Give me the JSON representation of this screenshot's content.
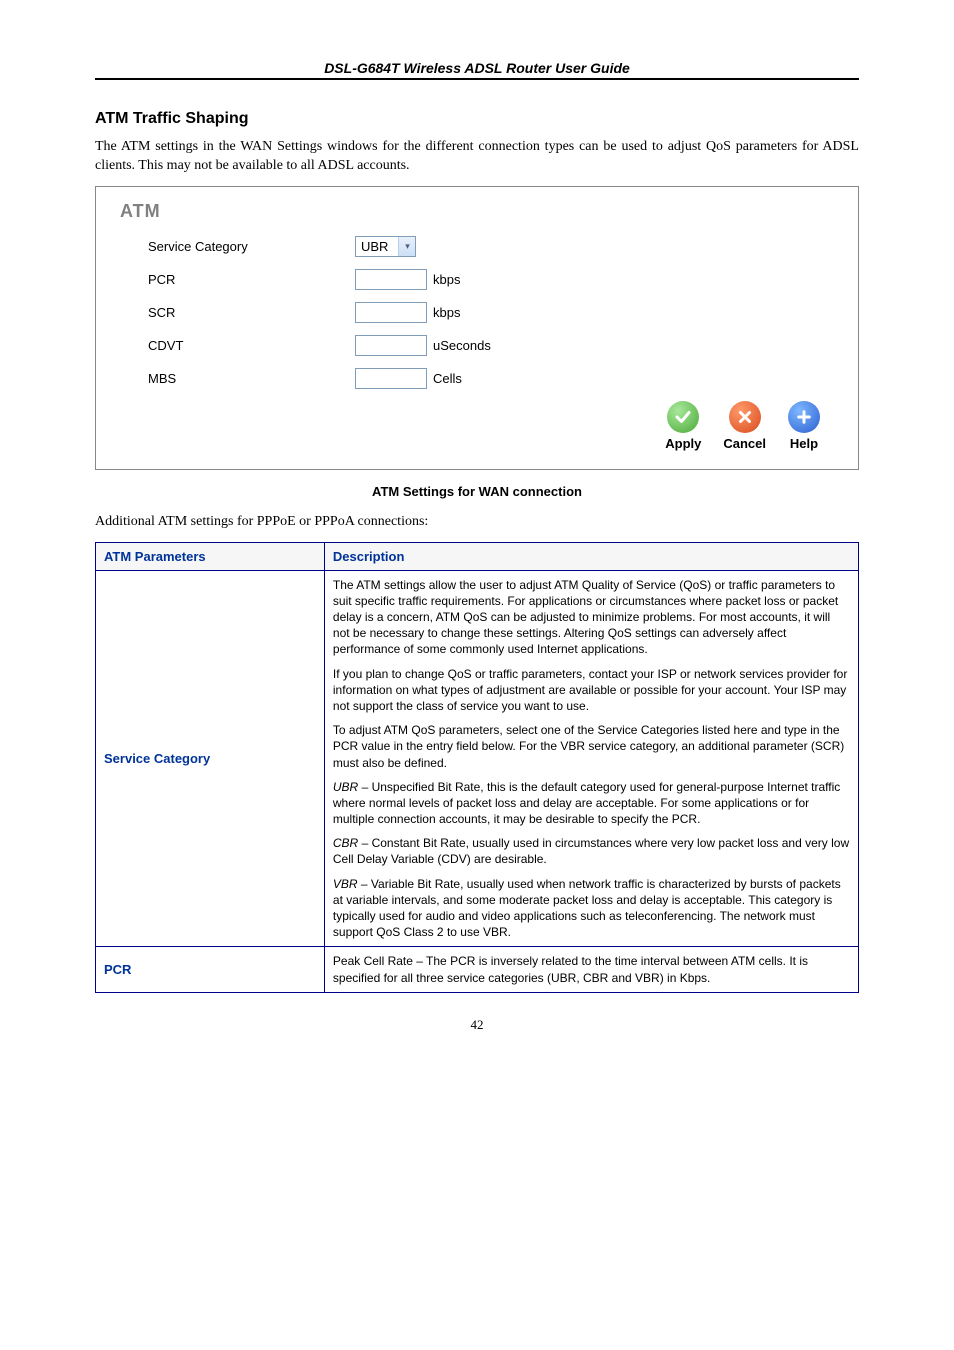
{
  "header": {
    "title": "DSL-G684T Wireless ADSL Router User Guide"
  },
  "section": {
    "heading": "ATM Traffic Shaping",
    "intro": "The ATM settings in the WAN Settings windows for the different connection types can be used to adjust QoS parameters for ADSL clients. This may not be available to all ADSL accounts."
  },
  "atm_panel": {
    "title": "ATM",
    "rows": [
      {
        "label": "Service Category",
        "type": "select",
        "value": "UBR"
      },
      {
        "label": "PCR",
        "type": "input",
        "unit": "kbps"
      },
      {
        "label": "SCR",
        "type": "input",
        "unit": "kbps"
      },
      {
        "label": "CDVT",
        "type": "input",
        "unit": "uSeconds"
      },
      {
        "label": "MBS",
        "type": "input",
        "unit": "Cells"
      }
    ],
    "buttons": {
      "apply": {
        "label": "Apply",
        "bg": "#4aa838"
      },
      "cancel": {
        "label": "Cancel",
        "bg": "#d84a1c"
      },
      "help": {
        "label": "Help",
        "bg": "#2a5fd0"
      }
    }
  },
  "figure_caption": "ATM Settings for WAN connection",
  "post_caption": "Additional ATM settings for PPPoE or PPPoA connections:",
  "table": {
    "columns": [
      "ATM Parameters",
      "Description"
    ],
    "col_widths": [
      "30%",
      "70%"
    ],
    "border_color": "#00008b",
    "header_color": "#003399",
    "rows": [
      {
        "label": "Service Category",
        "paras": [
          {
            "text": "The ATM settings allow the user to adjust ATM Quality of Service (QoS) or traffic parameters to suit specific traffic requirements. For applications or circumstances where packet loss or packet delay is a concern, ATM QoS can be adjusted to minimize problems. For most accounts, it will not be necessary to change these settings. Altering QoS settings can adversely affect performance of some commonly used Internet applications."
          },
          {
            "text": "If you plan to change QoS or traffic parameters, contact your ISP or network services provider for information on what types of adjustment are available or possible for your account. Your ISP may not support the class of service you want to use."
          },
          {
            "text": "To adjust ATM QoS parameters, select one of the Service Categories listed here and type in the PCR value in the entry field below. For the VBR service category, an additional parameter (SCR) must also be defined."
          },
          {
            "prefix_ital": "UBR",
            "rest": " – Unspecified Bit Rate, this is the default category used for general-purpose Internet traffic where normal levels of packet loss and delay are acceptable. For some applications or for multiple connection accounts, it may be desirable to specify the PCR."
          },
          {
            "prefix_ital": "CBR",
            "rest": " – Constant Bit Rate, usually used in circumstances where very low packet loss and very low Cell Delay Variable (CDV) are desirable."
          },
          {
            "prefix_ital": "VBR",
            "rest": " – Variable Bit Rate, usually used when network traffic is characterized by bursts of packets at variable intervals, and some moderate packet loss and delay is acceptable. This category is typically used for audio and video applications such as teleconferencing. The network must support QoS Class 2 to use VBR."
          }
        ]
      },
      {
        "label": "PCR",
        "paras": [
          {
            "text": "Peak Cell Rate – The PCR is inversely related to the time interval between ATM cells. It is specified for all three service categories (UBR, CBR and VBR) in Kbps."
          }
        ]
      }
    ]
  },
  "page_number": "42"
}
